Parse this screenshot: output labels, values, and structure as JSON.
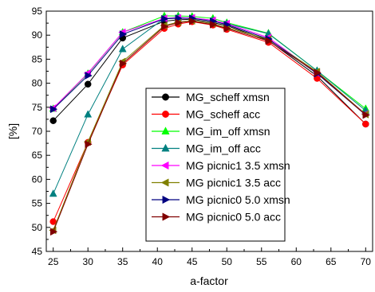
{
  "chart_data": {
    "type": "line",
    "xlabel": "a-factor",
    "ylabel": "[%]",
    "xlim": [
      24,
      71
    ],
    "ylim": [
      45,
      95
    ],
    "x_ticks": [
      25,
      30,
      35,
      40,
      45,
      50,
      55,
      60,
      65,
      70
    ],
    "y_ticks": [
      45,
      50,
      55,
      60,
      65,
      70,
      75,
      80,
      85,
      90,
      95
    ],
    "grid": false,
    "legend_position": "inside-center-right",
    "x": [
      25,
      30,
      35,
      41,
      43,
      45,
      48,
      50,
      56,
      63,
      70
    ],
    "series": [
      {
        "name": "MG_scheff xmsn",
        "color": "#000000",
        "marker": "circle",
        "values": [
          72.2,
          79.8,
          89.4,
          92.9,
          93.2,
          93.3,
          92.6,
          92.0,
          88.9,
          81.5,
          71.5
        ]
      },
      {
        "name": "MG_scheff acc",
        "color": "#ff0000",
        "marker": "circle",
        "values": [
          51.2,
          67.7,
          83.8,
          91.4,
          92.3,
          92.8,
          92.1,
          91.2,
          88.5,
          81.0,
          71.5
        ]
      },
      {
        "name": "MG_im_off xmsn",
        "color": "#00ff00",
        "marker": "triangle-up",
        "values": [
          74.7,
          82.0,
          90.6,
          94.0,
          94.0,
          93.9,
          93.5,
          92.6,
          90.4,
          82.6,
          74.7
        ]
      },
      {
        "name": "MG_im_off acc",
        "color": "#008080",
        "marker": "triangle-up",
        "values": [
          57.0,
          73.5,
          87.1,
          93.5,
          93.7,
          93.5,
          93.1,
          92.4,
          90.3,
          82.6,
          74.3
        ]
      },
      {
        "name": "MG picnic1 3.5 xmsn",
        "color": "#ff00ff",
        "marker": "triangle-left",
        "values": [
          74.8,
          82.1,
          90.6,
          93.5,
          93.6,
          93.6,
          93.1,
          92.4,
          89.5,
          82.1,
          73.6
        ]
      },
      {
        "name": "MG picnic1 3.5 acc",
        "color": "#808000",
        "marker": "triangle-left",
        "values": [
          49.4,
          67.8,
          84.5,
          92.0,
          92.7,
          93.0,
          92.4,
          91.6,
          89.1,
          82.4,
          73.5
        ]
      },
      {
        "name": "MG picnic0 5.0 xmsn",
        "color": "#000080",
        "marker": "triangle-right",
        "values": [
          74.6,
          81.6,
          90.2,
          93.4,
          93.5,
          93.5,
          92.9,
          92.2,
          89.2,
          82.0,
          73.4
        ]
      },
      {
        "name": "MG picnic0 5.0 acc",
        "color": "#800000",
        "marker": "triangle-right",
        "values": [
          49.1,
          67.3,
          84.1,
          91.8,
          92.6,
          92.9,
          92.2,
          91.4,
          88.8,
          82.2,
          73.4
        ]
      }
    ]
  }
}
